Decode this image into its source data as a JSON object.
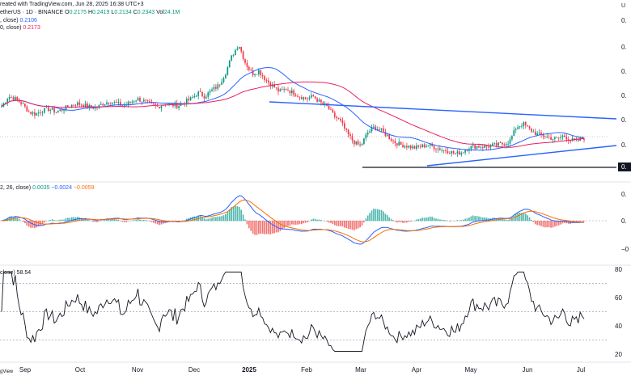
{
  "header": {
    "line1_text": "reated with TradingView.com, Jun 28, 2025 16:38 UTC+3",
    "symbol_text": "etherUS · 1D · BINANCE",
    "ohlc": {
      "o_label": "O",
      "o": "0.2175",
      "h_label": "H",
      "h": "0.2419",
      "l_label": "L",
      "l": "0.2134",
      "c_label": "C",
      "c": "0.2343",
      "vol_label": "Vol",
      "vol": "24.1M"
    },
    "ma1_label": ", close)",
    "ma1_value": "0.2106",
    "ma2_label": "0, close)",
    "ma2_value": "0.2173",
    "macd_label": "2, 26, close)",
    "macd_v1": "0.0035",
    "macd_v2": "−0.0024",
    "macd_v3": "−0.0059",
    "rsi_label": "close)",
    "rsi_value": "58.54",
    "corner_label": "U"
  },
  "price_axis": [
    "0.",
    "0.",
    "0.",
    "0.",
    "0.",
    "0.",
    "0."
  ],
  "price_badge": "0.",
  "macd_axis": [
    "0.",
    "0.",
    "−0"
  ],
  "rsi_axis": [
    "80",
    "60",
    "40",
    "20"
  ],
  "time_axis": [
    "Sep",
    "Oct",
    "Nov",
    "Dec",
    "2025",
    "Feb",
    "Mar",
    "Apr",
    "May",
    "Jun",
    "Jul"
  ],
  "footer": "gView",
  "chart_data": {
    "type": "candlestick",
    "series_closes": [
      0.245,
      0.262,
      0.258,
      0.25,
      0.236,
      0.232,
      0.238,
      0.241,
      0.236,
      0.24,
      0.246,
      0.25,
      0.248,
      0.244,
      0.243,
      0.25,
      0.254,
      0.25,
      0.246,
      0.252,
      0.258,
      0.254,
      0.248,
      0.244,
      0.25,
      0.248,
      0.246,
      0.252,
      0.258,
      0.268,
      0.262,
      0.272,
      0.28,
      0.3,
      0.33,
      0.35,
      0.318,
      0.3,
      0.305,
      0.29,
      0.28,
      0.27,
      0.275,
      0.268,
      0.262,
      0.258,
      0.262,
      0.252,
      0.245,
      0.23,
      0.22,
      0.2,
      0.185,
      0.178,
      0.2,
      0.21,
      0.205,
      0.195,
      0.185,
      0.18,
      0.178,
      0.175,
      0.178,
      0.18,
      0.176,
      0.172,
      0.17,
      0.165,
      0.168,
      0.176,
      0.178,
      0.177,
      0.178,
      0.18,
      0.182,
      0.186,
      0.21,
      0.216,
      0.206,
      0.198,
      0.196,
      0.192,
      0.19,
      0.196,
      0.188,
      0.187,
      0.192
    ],
    "colors": {
      "up": "#089981",
      "down": "#f23645",
      "ma_fast": "#2962ff",
      "ma_slow": "#e91e63",
      "trendline": "#2962ff",
      "support": "#131722",
      "macd": "#2962ff",
      "signal": "#ff6d00",
      "rsi": "#131722"
    }
  }
}
